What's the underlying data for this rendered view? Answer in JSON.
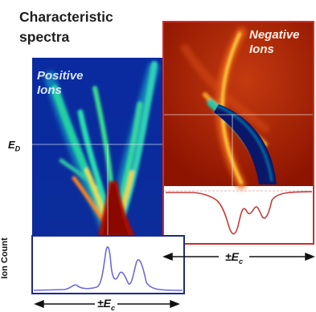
{
  "title": "Characteristic spectra",
  "ed_label": "E",
  "ed_sub": "D",
  "positive_label": "Positive Ions",
  "negative_label": "Negative Ions",
  "ion_count_label": "Ion Count",
  "ec_prefix": "±E",
  "ec_sub": "c",
  "colors": {
    "positive_frame": "#1e2a8a",
    "negative_frame": "#d42a2a",
    "positive_bg": "#0a2aa0",
    "negative_bg": "#9e1800",
    "positive_trace": "#6b6bd6",
    "negative_trace": "#c83c3c"
  }
}
